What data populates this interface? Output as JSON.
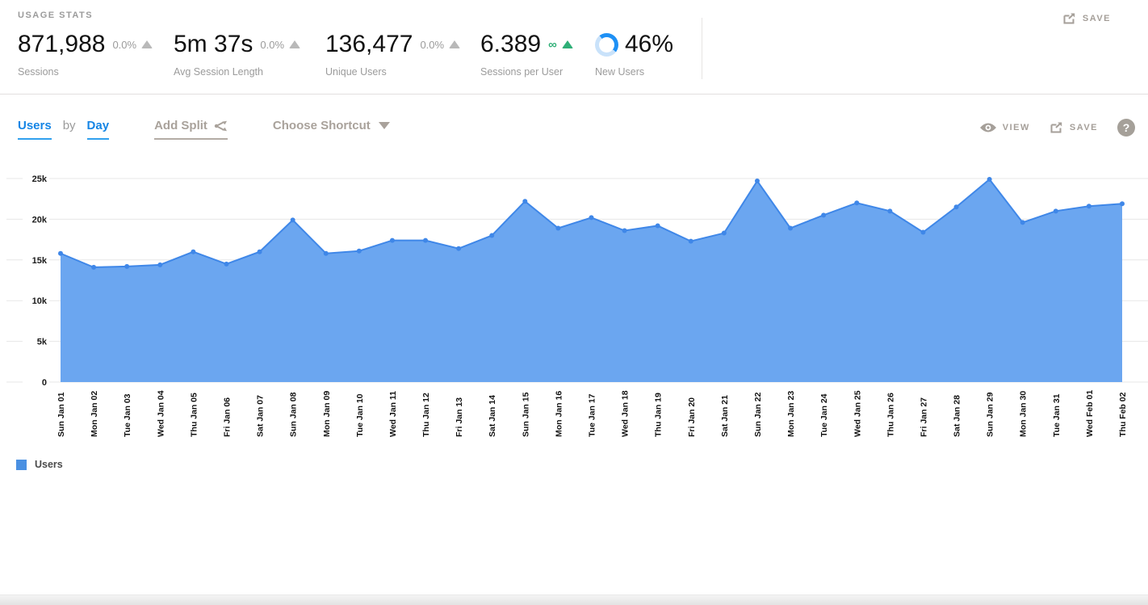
{
  "header": {
    "section_label": "USAGE STATS",
    "save_label": "SAVE",
    "stats": [
      {
        "value": "871,988",
        "delta": "0.0%",
        "trend": "up-gray",
        "label": "Sessions"
      },
      {
        "value": "5m 37s",
        "delta": "0.0%",
        "trend": "up-gray",
        "label": "Avg Session Length"
      },
      {
        "value": "136,477",
        "delta": "0.0%",
        "trend": "up-gray",
        "label": "Unique Users"
      },
      {
        "value": "6.389",
        "delta": "∞",
        "trend": "up-green",
        "label": "Sessions per User"
      },
      {
        "value": "46%",
        "delta": "",
        "trend": "donut",
        "label": "New Users",
        "donut_percent": 46
      }
    ]
  },
  "toolbar": {
    "metric_label": "Users",
    "by_label": "by",
    "dimension_label": "Day",
    "add_split_label": "Add Split",
    "choose_shortcut_label": "Choose Shortcut",
    "view_label": "VIEW",
    "save_label": "SAVE",
    "help_label": "?"
  },
  "chart_data": {
    "type": "area",
    "title": "Users by Day",
    "categories": [
      "Sun Jan 01",
      "Mon Jan 02",
      "Tue Jan 03",
      "Wed Jan 04",
      "Thu Jan 05",
      "Fri Jan 06",
      "Sat Jan 07",
      "Sun Jan 08",
      "Mon Jan 09",
      "Tue Jan 10",
      "Wed Jan 11",
      "Thu Jan 12",
      "Fri Jan 13",
      "Sat Jan 14",
      "Sun Jan 15",
      "Mon Jan 16",
      "Tue Jan 17",
      "Wed Jan 18",
      "Thu Jan 19",
      "Fri Jan 20",
      "Sat Jan 21",
      "Sun Jan 22",
      "Mon Jan 23",
      "Tue Jan 24",
      "Wed Jan 25",
      "Thu Jan 26",
      "Fri Jan 27",
      "Sat Jan 28",
      "Sun Jan 29",
      "Mon Jan 30",
      "Tue Jan 31",
      "Wed Feb 01",
      "Thu Feb 02"
    ],
    "series": [
      {
        "name": "Users",
        "values": [
          15800,
          14100,
          14200,
          14400,
          16000,
          14500,
          16000,
          19900,
          15800,
          16100,
          17400,
          17400,
          16400,
          18000,
          22200,
          18900,
          20200,
          18600,
          19200,
          17300,
          18300,
          24700,
          18900,
          20500,
          22000,
          21000,
          18400,
          21500,
          24900,
          19600,
          21000,
          21600,
          21900
        ]
      }
    ],
    "xlabel": "",
    "ylabel": "Users",
    "ylim": [
      0,
      25000
    ],
    "yticks": [
      {
        "value": 25000,
        "label": "25k"
      },
      {
        "value": 20000,
        "label": "20k"
      },
      {
        "value": 15000,
        "label": "15k"
      },
      {
        "value": 10000,
        "label": "10k"
      },
      {
        "value": 5000,
        "label": "5k"
      },
      {
        "value": 0,
        "label": "0"
      }
    ],
    "grid": "horizontal",
    "legend_position": "bottom-left",
    "colors": {
      "fill": "#6ba6f0",
      "line": "#3f87e8",
      "dot": "#3f87e8",
      "legend_swatch": "#4a90e2"
    }
  },
  "legend": {
    "items": [
      {
        "label": "Users",
        "color": "#4a90e2"
      }
    ]
  },
  "colors": {
    "accent_blue": "#1585e5",
    "underline_blue": "#31a0ee",
    "warm_gray": "#a9a29b",
    "green": "#2faf77",
    "donut_blue": "#1e90f5",
    "donut_rest": "#c9e2fa",
    "grid_gray": "#e7e7e7"
  }
}
